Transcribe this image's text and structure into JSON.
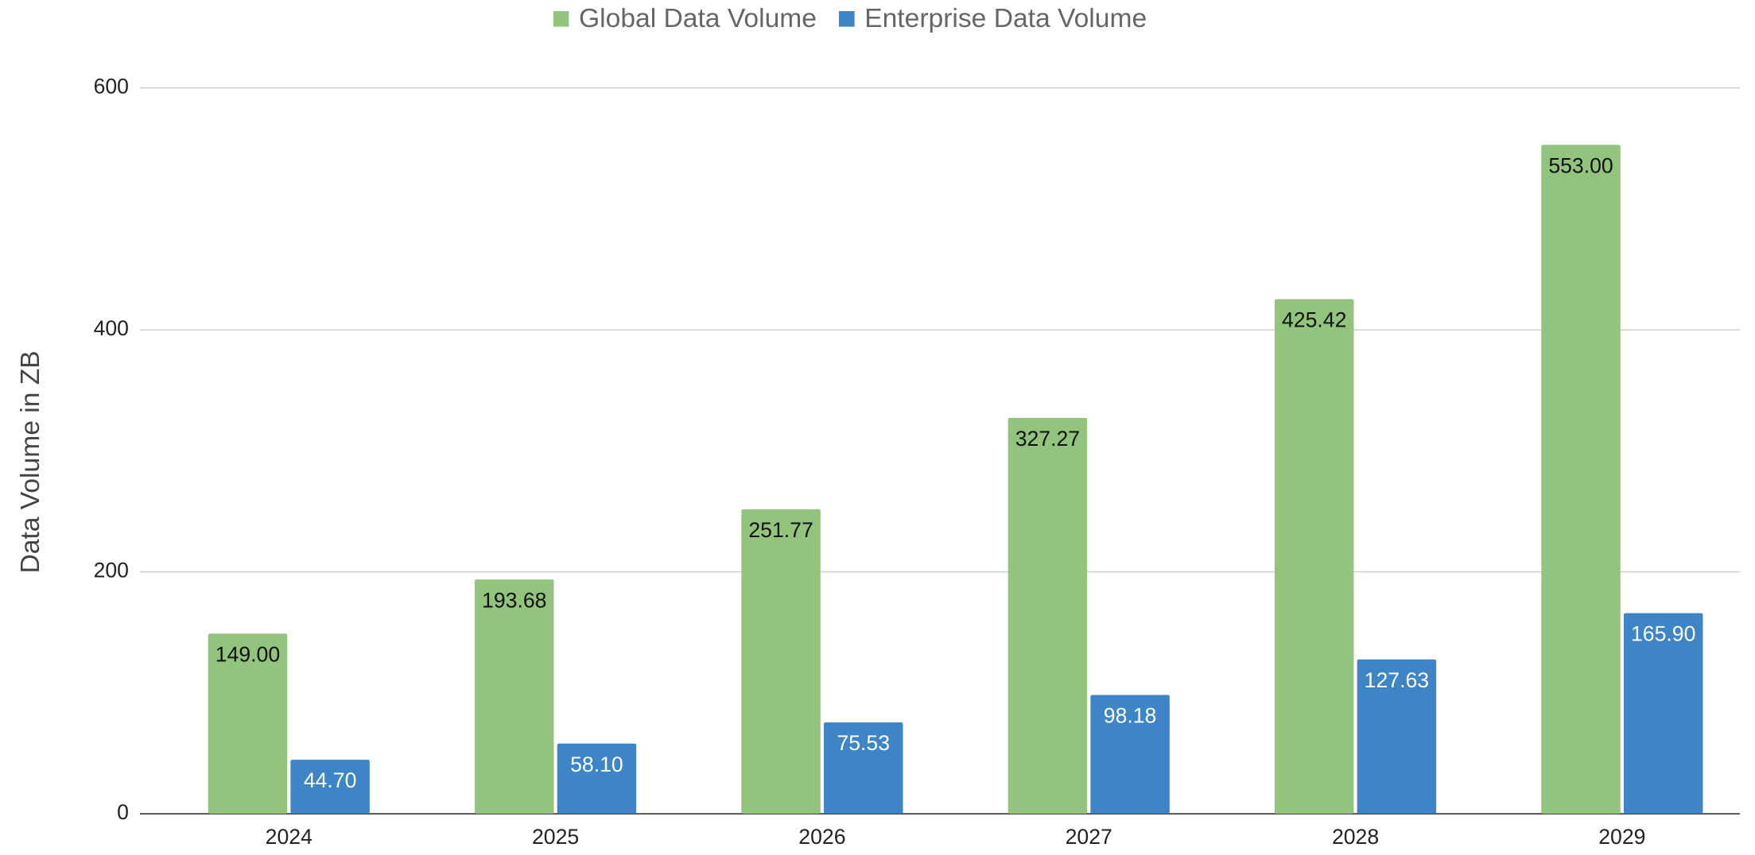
{
  "chart_data": {
    "type": "bar",
    "y_label": "Data Volume in ZB",
    "categories": [
      "2024",
      "2025",
      "2026",
      "2027",
      "2028",
      "2029"
    ],
    "series": [
      {
        "name": "Global Data Volume",
        "color": "#93c47d",
        "values": [
          149,
          193.68,
          251.77,
          327.27,
          425.42,
          553
        ],
        "value_labels": [
          "149.00",
          "193.68",
          "251.77",
          "327.27",
          "425.42",
          "553.00"
        ]
      },
      {
        "name": "Enterprise Data Volume",
        "color": "#3d85c6",
        "values": [
          44.7,
          58.1,
          75.53,
          98.18,
          127.63,
          165.9
        ],
        "value_labels": [
          "44.70",
          "58.10",
          "75.53",
          "98.18",
          "127.63",
          "165.90"
        ]
      }
    ],
    "ylim": [
      0,
      600
    ],
    "yticks": [
      0,
      200,
      400,
      600
    ],
    "grid": true,
    "legend": "top"
  }
}
